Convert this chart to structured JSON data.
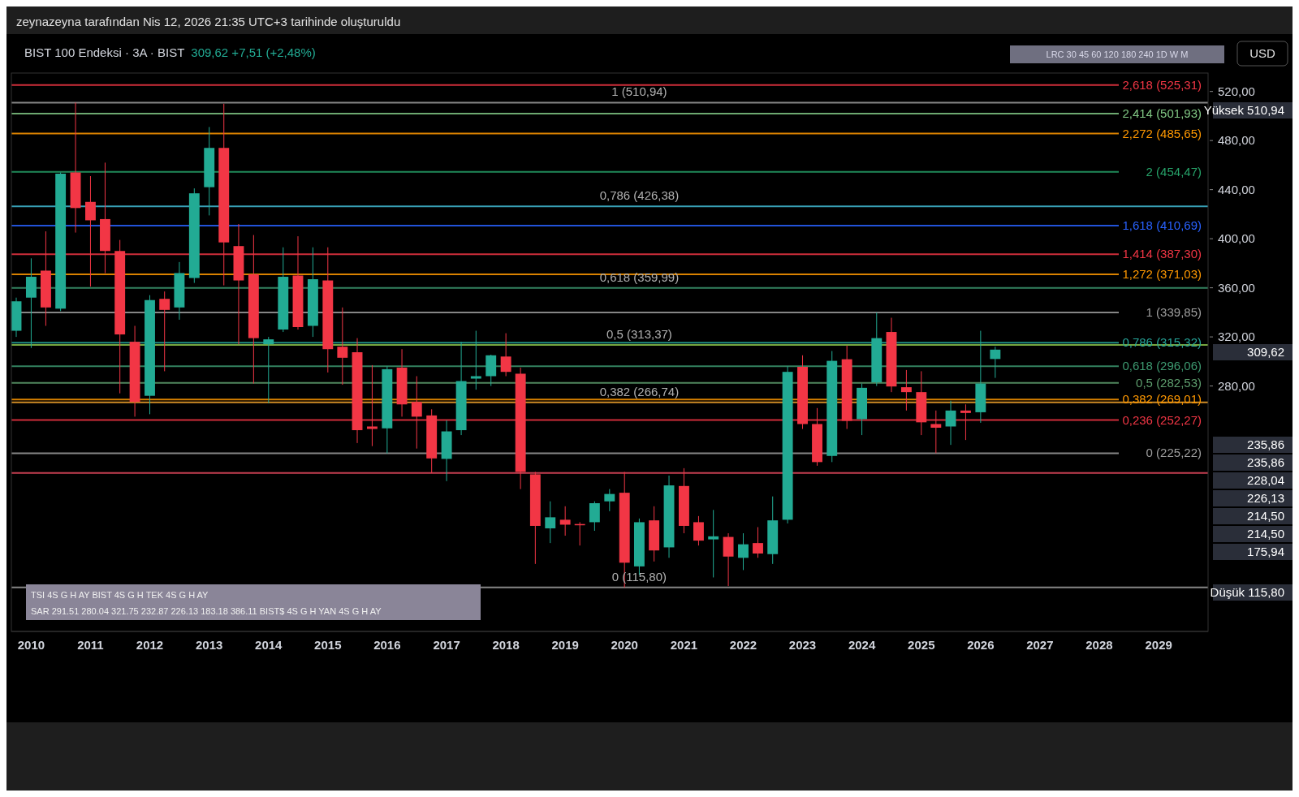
{
  "chart_data": {
    "type": "candlestick",
    "title": "BIST 100 Endeksi · 3A · BIST",
    "subtitle": "309,62 +7,51 (+2,48%)",
    "x": [
      "2009-10",
      "2010-01",
      "2010-04",
      "2010-07",
      "2010-10",
      "2011-01",
      "2011-04",
      "2011-07",
      "2011-10",
      "2012-01",
      "2012-04",
      "2012-07",
      "2012-10",
      "2013-01",
      "2013-04",
      "2013-07",
      "2013-10",
      "2014-01",
      "2014-04",
      "2014-07",
      "2014-10",
      "2015-01",
      "2015-04",
      "2015-07",
      "2015-10",
      "2016-01",
      "2016-04",
      "2016-07",
      "2016-10",
      "2017-01",
      "2017-04",
      "2017-07",
      "2017-10",
      "2018-01",
      "2018-04",
      "2018-07",
      "2018-10",
      "2019-01",
      "2019-04",
      "2019-07",
      "2019-10",
      "2020-01",
      "2020-04",
      "2020-07",
      "2020-10",
      "2021-01",
      "2021-04",
      "2021-07",
      "2021-10",
      "2022-01",
      "2022-04",
      "2022-07",
      "2022-10",
      "2023-01",
      "2023-04",
      "2023-07",
      "2023-10",
      "2024-01",
      "2024-04",
      "2024-07",
      "2024-10",
      "2025-01",
      "2025-04",
      "2025-07",
      "2025-10",
      "2026-01",
      "2026-04"
    ],
    "ohlc": [
      [
        325,
        352,
        320,
        349
      ],
      [
        352,
        384,
        311,
        369
      ],
      [
        374,
        406,
        329,
        344
      ],
      [
        343,
        454,
        341,
        453
      ],
      [
        454,
        510.94,
        405,
        425
      ],
      [
        430,
        451,
        361,
        415
      ],
      [
        416,
        462,
        372,
        390
      ],
      [
        390,
        399,
        274,
        322
      ],
      [
        316,
        329,
        255,
        267
      ],
      [
        272,
        354,
        257,
        350
      ],
      [
        351,
        357,
        292,
        342
      ],
      [
        344,
        381,
        334,
        372
      ],
      [
        368,
        441,
        364,
        437
      ],
      [
        442,
        491,
        419,
        474
      ],
      [
        474,
        510,
        362,
        397
      ],
      [
        394,
        412,
        314,
        366
      ],
      [
        371,
        403,
        282,
        319
      ],
      [
        314,
        320,
        266,
        318
      ],
      [
        326,
        393,
        324,
        369
      ],
      [
        370,
        402,
        326,
        328
      ],
      [
        329,
        393,
        320,
        367
      ],
      [
        366,
        393,
        291,
        310
      ],
      [
        312,
        344,
        281,
        303
      ],
      [
        307.5,
        319,
        233.5,
        244
      ],
      [
        247,
        297,
        231,
        245
      ],
      [
        245.5,
        296,
        225,
        293.7
      ],
      [
        295,
        310,
        255,
        265
      ],
      [
        267,
        288,
        229,
        255
      ],
      [
        256,
        261,
        209,
        221
      ],
      [
        220.6,
        252,
        202.5,
        243
      ],
      [
        244,
        316,
        240,
        284
      ],
      [
        286,
        325,
        277,
        288
      ],
      [
        288,
        305.5,
        280,
        305
      ],
      [
        304,
        323,
        288,
        291.5
      ],
      [
        290,
        295,
        196,
        210
      ],
      [
        208,
        210,
        135,
        166
      ],
      [
        164,
        186,
        152,
        173
      ],
      [
        171,
        182,
        158,
        167
      ],
      [
        167.5,
        169,
        150,
        166.5
      ],
      [
        169,
        186,
        162,
        184.5
      ],
      [
        186,
        196,
        178,
        192
      ],
      [
        193,
        210,
        115.8,
        136
      ],
      [
        133,
        172,
        126,
        169
      ],
      [
        170.5,
        182,
        137,
        146
      ],
      [
        148.5,
        207,
        140,
        199
      ],
      [
        198.5,
        213,
        160,
        166
      ],
      [
        169,
        174,
        150,
        154
      ],
      [
        155,
        179,
        124,
        157.5
      ],
      [
        157,
        160,
        117,
        141
      ],
      [
        140,
        160,
        130,
        151
      ],
      [
        152,
        165,
        140,
        143.5
      ],
      [
        143,
        190,
        135,
        170.5
      ],
      [
        171,
        296,
        168,
        291.5
      ],
      [
        295.6,
        305,
        245,
        249
      ],
      [
        249,
        262,
        215,
        218
      ],
      [
        223,
        308.5,
        218,
        300.5
      ],
      [
        301.8,
        313,
        245,
        251.6
      ],
      [
        253,
        282,
        240,
        278.5
      ],
      [
        283,
        339.85,
        280,
        319
      ],
      [
        324,
        335.6,
        275,
        279.6
      ],
      [
        279,
        293,
        260,
        275
      ],
      [
        275,
        292,
        240,
        250.4
      ],
      [
        249,
        260,
        225.22,
        246
      ],
      [
        247,
        268,
        232,
        260
      ],
      [
        260,
        265,
        236,
        258
      ],
      [
        258.6,
        325,
        250,
        282
      ],
      [
        302,
        312,
        286.6,
        309.62
      ]
    ],
    "xlim": [
      "2009-09",
      "2029-11"
    ],
    "xticks": [
      "2010",
      "2011",
      "2012",
      "2013",
      "2014",
      "2015",
      "2016",
      "2017",
      "2018",
      "2019",
      "2020",
      "2021",
      "2022",
      "2023",
      "2024",
      "2025",
      "2026",
      "2027",
      "2028",
      "2029"
    ],
    "ylim": [
      80,
      535
    ],
    "yticks": [
      {
        "value": 280,
        "label": "280,00"
      },
      {
        "value": 320,
        "label": "320,00"
      },
      {
        "value": 360,
        "label": "360,00"
      },
      {
        "value": 400,
        "label": "400,00"
      },
      {
        "value": 440,
        "label": "440,00"
      },
      {
        "value": 480,
        "label": "480,00"
      },
      {
        "value": 520,
        "label": "520,00"
      }
    ],
    "ref_lines": [
      {
        "axis": "y",
        "value": 510.94,
        "label": null,
        "color": "#9e9e9e"
      },
      {
        "axis": "y",
        "value": 426.38,
        "label": null,
        "color": "#42bcd6"
      },
      {
        "axis": "y",
        "value": 359.99,
        "label": null,
        "color": "#3d9970"
      },
      {
        "axis": "y",
        "value": 313.37,
        "label": null,
        "color": "#8bc34a"
      },
      {
        "axis": "y",
        "value": 266.74,
        "label": null,
        "color": "#f4a52c"
      },
      {
        "axis": "y",
        "value": 209.05,
        "label": null,
        "color": "#e84a5f"
      },
      {
        "axis": "y",
        "value": 115.8,
        "label": null,
        "color": "#9e9e9e"
      },
      {
        "axis": "y",
        "value": 525.31,
        "label": "2,618 (525,31)",
        "color": "#f23645"
      },
      {
        "axis": "y",
        "value": 501.93,
        "label": "2,414 (501,93)",
        "color": "#81c784"
      },
      {
        "axis": "y",
        "value": 485.65,
        "label": "2,272 (485,65)",
        "color": "#ff9800"
      },
      {
        "axis": "y",
        "value": 454.47,
        "label": "2 (454,47)",
        "color": "#26a269"
      },
      {
        "axis": "y",
        "value": 410.69,
        "label": "1,618 (410,69)",
        "color": "#2962ff"
      },
      {
        "axis": "y",
        "value": 387.3,
        "label": "1,414 (387,30)",
        "color": "#f23645"
      },
      {
        "axis": "y",
        "value": 371.03,
        "label": "1,272 (371,03)",
        "color": "#ff9800"
      },
      {
        "axis": "y",
        "value": 339.85,
        "label": "1 (339,85)",
        "color": "#9e9e9e"
      },
      {
        "axis": "y",
        "value": 315.32,
        "label": "0,786 (315,32)",
        "color": "#26a69a"
      },
      {
        "axis": "y",
        "value": 296.06,
        "label": "0,618 (296,06)",
        "color": "#3d9970"
      },
      {
        "axis": "y",
        "value": 282.53,
        "label": "0,5 (282,53)",
        "color": "#5e9e6e"
      },
      {
        "axis": "y",
        "value": 269.01,
        "label": "0,382 (269,01)",
        "color": "#ff9800"
      },
      {
        "axis": "y",
        "value": 252.27,
        "label": "0,236 (252,27)",
        "color": "#f23645"
      },
      {
        "axis": "y",
        "value": 225.22,
        "label": "0 (225,22)",
        "color": "#9e9e9e"
      }
    ],
    "annotations": [
      "zeynazeyna tarafından Nis 12, 2026 21:35 UTC+3 tarihinde oluşturuldu",
      "USD",
      "LRC 30 45 60 120 180 240 1D W M",
      "TSI 4S G H AY BIST 4S G H TEK 4S G H AY",
      "SAR 291.51 280.04 321.75 232.87 226.13 183.18 386.11 BIST$ 4S G H YAN 4S G H AY",
      {
        "text": "1 (510,94)",
        "x": "2020-04",
        "y": 510.94
      },
      {
        "text": "0,786 (426,38)",
        "x": "2020-04",
        "y": 426.38
      },
      {
        "text": "0,618 (359,99)",
        "x": "2020-04",
        "y": 359.99
      },
      {
        "text": "0,5 (313,37)",
        "x": "2020-04",
        "y": 313.37
      },
      {
        "text": "0,382 (266,74)",
        "x": "2020-04",
        "y": 266.74
      },
      {
        "text": "0 (115,80)",
        "x": "2020-04",
        "y": 115.8
      },
      "Yüksek 510,94",
      "309,62",
      "235,86",
      "235,86",
      "228,04",
      "226,13",
      "214,50",
      "214,50",
      "175,94",
      "Düşük 115,80"
    ]
  }
}
